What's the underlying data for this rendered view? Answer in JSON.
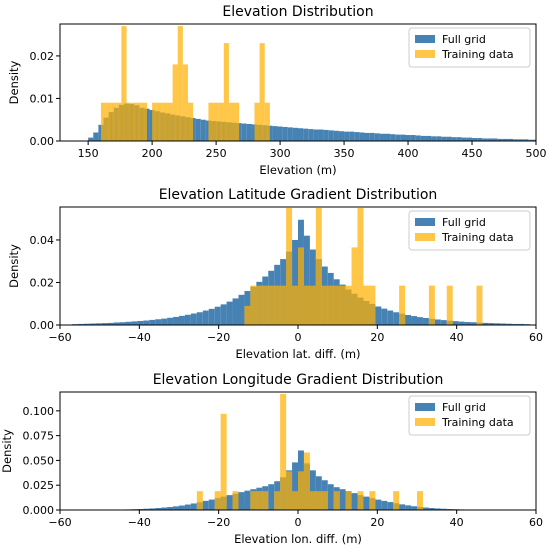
{
  "chart_data": [
    {
      "type": "bar",
      "title": "Elevation Distribution",
      "xlabel": "Elevation (m)",
      "ylabel": "Density",
      "xlim": [
        128,
        500
      ],
      "ylim": [
        0,
        0.0275
      ],
      "xticks": [
        150,
        200,
        250,
        300,
        350,
        400,
        450,
        500
      ],
      "xtick_labels": [
        "150",
        "200",
        "250",
        "300",
        "350",
        "400",
        "450",
        "500"
      ],
      "yticks": [
        0,
        0.01,
        0.02
      ],
      "ytick_labels": [
        "0.00",
        "0.01",
        "0.02"
      ],
      "bin_width": 4,
      "legend": {
        "placement": "top-right",
        "entries": [
          "Full grid",
          "Training data"
        ]
      },
      "series": [
        {
          "name": "Full grid",
          "color": "#4682b4",
          "x": [
            150,
            154,
            158,
            162,
            166,
            170,
            174,
            178,
            182,
            186,
            190,
            194,
            198,
            202,
            206,
            210,
            214,
            218,
            222,
            226,
            230,
            234,
            238,
            242,
            246,
            250,
            254,
            258,
            262,
            266,
            270,
            274,
            278,
            282,
            286,
            290,
            294,
            298,
            302,
            306,
            310,
            314,
            318,
            322,
            326,
            330,
            334,
            338,
            342,
            346,
            350,
            354,
            358,
            362,
            366,
            370,
            374,
            378,
            382,
            386,
            390,
            394,
            398,
            402,
            406,
            410,
            414,
            418,
            422,
            426,
            430,
            434,
            438,
            442,
            446,
            450,
            454,
            458,
            462,
            466,
            470,
            474,
            478,
            482,
            486,
            490,
            494,
            498
          ],
          "values": [
            0.0008,
            0.002,
            0.0038,
            0.0055,
            0.0068,
            0.0078,
            0.0085,
            0.0088,
            0.0087,
            0.0084,
            0.0078,
            0.0076,
            0.0073,
            0.007,
            0.0067,
            0.0065,
            0.0062,
            0.006,
            0.0058,
            0.0056,
            0.0054,
            0.0052,
            0.005,
            0.0048,
            0.0047,
            0.0046,
            0.0045,
            0.0044,
            0.0043,
            0.0042,
            0.0041,
            0.004,
            0.0039,
            0.0038,
            0.0037,
            0.0036,
            0.0035,
            0.0034,
            0.0033,
            0.0032,
            0.0031,
            0.003,
            0.0029,
            0.0028,
            0.0027,
            0.0027,
            0.0026,
            0.0025,
            0.0024,
            0.0023,
            0.0022,
            0.0022,
            0.0021,
            0.002,
            0.0019,
            0.0019,
            0.0018,
            0.0017,
            0.0017,
            0.0016,
            0.0015,
            0.0015,
            0.0014,
            0.0014,
            0.0013,
            0.0012,
            0.0012,
            0.0011,
            0.0011,
            0.001,
            0.001,
            0.0009,
            0.0009,
            0.0008,
            0.0008,
            0.0007,
            0.0007,
            0.0006,
            0.0006,
            0.0006,
            0.0005,
            0.0005,
            0.0005,
            0.0004,
            0.0004,
            0.0004,
            0.0003,
            0.0003
          ]
        },
        {
          "name": "Training data",
          "color": "#ffb000",
          "opacity": 0.72,
          "x": [
            160,
            164,
            168,
            172,
            176,
            180,
            184,
            188,
            192,
            196,
            200,
            204,
            208,
            212,
            216,
            220,
            224,
            228,
            232,
            236,
            240,
            244,
            248,
            252,
            256,
            260,
            264,
            268,
            272,
            276,
            280,
            284,
            288
          ],
          "values": [
            0.009,
            0.009,
            0.009,
            0.009,
            0.027,
            0.009,
            0.009,
            0.009,
            0.009,
            0.0,
            0.009,
            0.009,
            0.009,
            0.009,
            0.018,
            0.027,
            0.018,
            0.009,
            0.0,
            0.0,
            0.0,
            0.009,
            0.009,
            0.009,
            0.023,
            0.009,
            0.009,
            0.0,
            0.0,
            0.0,
            0.009,
            0.023,
            0.009
          ]
        }
      ]
    },
    {
      "type": "bar",
      "title": "Elevation Latitude Gradient Distribution",
      "xlabel": "Elevation lat. diff. (m)",
      "ylabel": "Density",
      "xlim": [
        -60,
        60
      ],
      "ylim": [
        0,
        0.0555
      ],
      "xticks": [
        -60,
        -40,
        -20,
        0,
        20,
        40,
        60
      ],
      "xtick_labels": [
        "−60",
        "−40",
        "−20",
        "0",
        "20",
        "40",
        "60"
      ],
      "yticks": [
        0,
        0.02,
        0.04
      ],
      "ytick_labels": [
        "0.00",
        "0.02",
        "0.04"
      ],
      "bin_width": 1.5,
      "legend": {
        "placement": "top-right",
        "entries": [
          "Full grid",
          "Training data"
        ]
      },
      "series": [
        {
          "name": "Full grid",
          "color": "#4682b4",
          "x": [
            -57,
            -55.5,
            -54,
            -52.5,
            -51,
            -49.5,
            -48,
            -46.5,
            -45,
            -43.5,
            -42,
            -40.5,
            -39,
            -37.5,
            -36,
            -34.5,
            -33,
            -31.5,
            -30,
            -28.5,
            -27,
            -25.5,
            -24,
            -22.5,
            -21,
            -19.5,
            -18,
            -16.5,
            -15,
            -13.5,
            -12,
            -10.5,
            -9,
            -7.5,
            -6,
            -4.5,
            -3,
            -1.5,
            0,
            1.5,
            3,
            4.5,
            6,
            7.5,
            9,
            10.5,
            12,
            13.5,
            15,
            16.5,
            18,
            19.5,
            21,
            22.5,
            24,
            25.5,
            27,
            28.5,
            30,
            31.5,
            33,
            34.5,
            36,
            37.5,
            39,
            40.5,
            42,
            43.5,
            45,
            46.5,
            48,
            49.5,
            51,
            52.5,
            54,
            55.5,
            57
          ],
          "values": [
            0.0004,
            0.0005,
            0.0006,
            0.0007,
            0.0008,
            0.0009,
            0.001,
            0.0012,
            0.0013,
            0.0015,
            0.0017,
            0.0019,
            0.0021,
            0.0024,
            0.0027,
            0.003,
            0.0034,
            0.0038,
            0.0043,
            0.0048,
            0.0054,
            0.006,
            0.0068,
            0.0076,
            0.0086,
            0.0097,
            0.011,
            0.0125,
            0.0142,
            0.016,
            0.018,
            0.0203,
            0.0228,
            0.0255,
            0.0283,
            0.031,
            0.0345,
            0.04,
            0.0495,
            0.042,
            0.0355,
            0.031,
            0.0275,
            0.0245,
            0.0215,
            0.019,
            0.0167,
            0.0147,
            0.0129,
            0.0113,
            0.0099,
            0.0087,
            0.0077,
            0.0068,
            0.006,
            0.0053,
            0.0047,
            0.0042,
            0.0037,
            0.0033,
            0.0029,
            0.0026,
            0.0023,
            0.002,
            0.0018,
            0.0016,
            0.0014,
            0.0013,
            0.0011,
            0.001,
            0.0009,
            0.0008,
            0.0007,
            0.0006,
            0.0005,
            0.0005,
            0.0004
          ]
        },
        {
          "name": "Training data",
          "color": "#ffb000",
          "opacity": 0.72,
          "x": [
            -13.5,
            -12,
            -10.5,
            -9,
            -7.5,
            -6,
            -4.5,
            -3,
            -1.5,
            0,
            1.5,
            3,
            4.5,
            6,
            7.5,
            9,
            10.5,
            12,
            13.5,
            15,
            16.5,
            18,
            25.5,
            33,
            37.5,
            45
          ],
          "values": [
            0.009,
            0.0185,
            0.0185,
            0.0185,
            0.0185,
            0.0185,
            0.0185,
            0.055,
            0.0185,
            0.0365,
            0.0185,
            0.0185,
            0.055,
            0.0185,
            0.0185,
            0.0185,
            0.0185,
            0.0185,
            0.0365,
            0.055,
            0.0185,
            0.0185,
            0.0185,
            0.0185,
            0.0185,
            0.0185
          ]
        }
      ]
    },
    {
      "type": "bar",
      "title": "Elevation Longitude Gradient Distribution",
      "xlabel": "Elevation lon. diff. (m)",
      "ylabel": "Density",
      "xlim": [
        -60,
        60
      ],
      "ylim": [
        0,
        0.119
      ],
      "xticks": [
        -60,
        -40,
        -20,
        0,
        20,
        40,
        60
      ],
      "xtick_labels": [
        "−60",
        "−40",
        "−20",
        "0",
        "20",
        "40",
        "60"
      ],
      "yticks": [
        0,
        0.025,
        0.05,
        0.075,
        0.1
      ],
      "ytick_labels": [
        "0.000",
        "0.025",
        "0.050",
        "0.075",
        "0.100"
      ],
      "bin_width": 1.5,
      "legend": {
        "placement": "top-right",
        "entries": [
          "Full grid",
          "Training data"
        ]
      },
      "series": [
        {
          "name": "Full grid",
          "color": "#4682b4",
          "x": [
            -45,
            -43.5,
            -42,
            -40.5,
            -39,
            -37.5,
            -36,
            -34.5,
            -33,
            -31.5,
            -30,
            -28.5,
            -27,
            -25.5,
            -24,
            -22.5,
            -21,
            -19.5,
            -18,
            -16.5,
            -15,
            -13.5,
            -12,
            -10.5,
            -9,
            -7.5,
            -6,
            -4.5,
            -3,
            -1.5,
            0,
            1.5,
            3,
            4.5,
            6,
            7.5,
            9,
            10.5,
            12,
            13.5,
            15,
            16.5,
            18,
            19.5,
            21,
            22.5,
            24,
            25.5,
            27,
            28.5,
            30,
            31.5,
            33,
            34.5,
            36,
            37.5,
            39,
            40.5,
            42
          ],
          "values": [
            0.0005,
            0.0006,
            0.0008,
            0.001,
            0.0013,
            0.0016,
            0.002,
            0.0025,
            0.003,
            0.0037,
            0.0045,
            0.0055,
            0.0066,
            0.0078,
            0.0092,
            0.0105,
            0.012,
            0.0135,
            0.015,
            0.0165,
            0.018,
            0.0195,
            0.021,
            0.0225,
            0.024,
            0.026,
            0.029,
            0.033,
            0.04,
            0.048,
            0.06,
            0.047,
            0.04,
            0.034,
            0.03,
            0.026,
            0.023,
            0.021,
            0.019,
            0.017,
            0.015,
            0.0135,
            0.012,
            0.0105,
            0.0092,
            0.008,
            0.0068,
            0.0057,
            0.0047,
            0.0038,
            0.0031,
            0.0025,
            0.002,
            0.0016,
            0.0013,
            0.001,
            0.0008,
            0.0006,
            0.0005
          ]
        },
        {
          "name": "Training data",
          "color": "#ffb000",
          "opacity": 0.72,
          "x": [
            -25.5,
            -21,
            -19.5,
            -16.5,
            -12,
            -10.5,
            -9,
            -6,
            -4.5,
            -3,
            -1.5,
            0,
            1.5,
            3,
            4.5,
            6,
            9,
            12,
            15,
            18,
            24,
            30
          ],
          "values": [
            0.019,
            0.019,
            0.097,
            0.019,
            0.019,
            0.019,
            0.019,
            0.019,
            0.117,
            0.039,
            0.019,
            0.039,
            0.058,
            0.019,
            0.019,
            0.019,
            0.019,
            0.019,
            0.019,
            0.019,
            0.019,
            0.019
          ]
        }
      ]
    }
  ]
}
